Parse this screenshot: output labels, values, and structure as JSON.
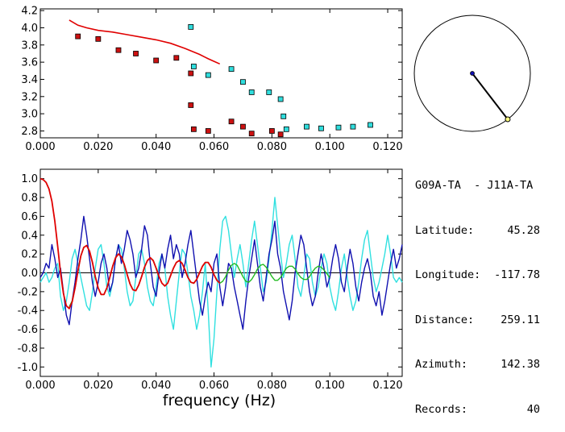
{
  "info": {
    "pair": "G09A-TA  - J11A-TA",
    "rows": [
      {
        "label": "Latitude:",
        "value": "45.28"
      },
      {
        "label": "Longitude:",
        "value": "-117.78"
      },
      {
        "label": "Distance:",
        "value": "259.11"
      },
      {
        "label": "Azimuth:",
        "value": "142.38"
      },
      {
        "label": "Records:",
        "value": "40"
      }
    ]
  },
  "colors": {
    "red": "#e00000",
    "blue": "#1010b0",
    "cyan": "#30e0e0",
    "green": "#22bb22",
    "red_marker": "#cc1111",
    "cyan_marker": "#30dddd"
  },
  "chart_data": [
    {
      "type": "scatter",
      "xlim": [
        0.0,
        0.125
      ],
      "ylim": [
        2.72,
        4.22
      ],
      "xticks": [
        "0.000",
        "0.020",
        "0.040",
        "0.060",
        "0.080",
        "0.100",
        "0.120"
      ],
      "yticks": [
        "2.8",
        "3.0",
        "3.2",
        "3.4",
        "3.6",
        "3.8",
        "4.0",
        "4.2"
      ],
      "curve": {
        "x": [
          0.01,
          0.013,
          0.016,
          0.02,
          0.025,
          0.03,
          0.035,
          0.04,
          0.045,
          0.05,
          0.055,
          0.058,
          0.06,
          0.062
        ],
        "y": [
          4.09,
          4.03,
          4.0,
          3.97,
          3.95,
          3.92,
          3.89,
          3.86,
          3.82,
          3.76,
          3.69,
          3.64,
          3.61,
          3.58
        ]
      },
      "red_points": {
        "x": [
          0.013,
          0.02,
          0.027,
          0.033,
          0.04,
          0.047,
          0.052,
          0.052,
          0.053,
          0.058,
          0.066,
          0.07,
          0.073,
          0.08,
          0.083
        ],
        "y": [
          3.9,
          3.87,
          3.74,
          3.7,
          3.62,
          3.65,
          3.47,
          3.1,
          2.82,
          2.8,
          2.91,
          2.85,
          2.77,
          2.8,
          2.76
        ]
      },
      "cyan_points": {
        "x": [
          0.052,
          0.053,
          0.058,
          0.066,
          0.07,
          0.073,
          0.079,
          0.083,
          0.084,
          0.085,
          0.092,
          0.097,
          0.103,
          0.108,
          0.114
        ],
        "y": [
          4.01,
          3.55,
          3.45,
          3.52,
          3.37,
          3.25,
          3.25,
          3.17,
          2.97,
          2.82,
          2.85,
          2.83,
          2.84,
          2.85,
          2.87
        ]
      }
    },
    {
      "type": "line",
      "xlim": [
        0.0,
        0.125
      ],
      "ylim": [
        -1.1,
        1.1
      ],
      "xlabel": "frequency (Hz)",
      "xticks": [
        "0.000",
        "0.020",
        "0.040",
        "0.060",
        "0.080",
        "0.100",
        "0.120"
      ],
      "yticks": [
        "-1.0",
        "-0.8",
        "-0.6",
        "-0.4",
        "-0.2",
        "0.0",
        "0.2",
        "0.4",
        "0.6",
        "0.8",
        "1.0"
      ],
      "series": [
        {
          "x": [
            0.0,
            0.001,
            0.002,
            0.003,
            0.004,
            0.005,
            0.006,
            0.007,
            0.008,
            0.009,
            0.01,
            0.011,
            0.012,
            0.013,
            0.014,
            0.015,
            0.016,
            0.017,
            0.018,
            0.019,
            0.02,
            0.021,
            0.022,
            0.023,
            0.024,
            0.025,
            0.026,
            0.027,
            0.028,
            0.029,
            0.03,
            0.031,
            0.032,
            0.033,
            0.034,
            0.035,
            0.036,
            0.037,
            0.038,
            0.039,
            0.04,
            0.041,
            0.042,
            0.043,
            0.044,
            0.045,
            0.046,
            0.047,
            0.048,
            0.049,
            0.05,
            0.051,
            0.052,
            0.053,
            0.054,
            0.055,
            0.056,
            0.057,
            0.058,
            0.059,
            0.06,
            0.061,
            0.062
          ],
          "y": [
            1.0,
            0.99,
            0.96,
            0.89,
            0.76,
            0.55,
            0.28,
            0.0,
            -0.22,
            -0.35,
            -0.38,
            -0.31,
            -0.16,
            0.02,
            0.18,
            0.27,
            0.29,
            0.23,
            0.11,
            -0.04,
            -0.16,
            -0.23,
            -0.23,
            -0.16,
            -0.05,
            0.07,
            0.16,
            0.2,
            0.17,
            0.09,
            -0.02,
            -0.12,
            -0.18,
            -0.19,
            -0.13,
            -0.04,
            0.06,
            0.13,
            0.16,
            0.13,
            0.05,
            -0.04,
            -0.11,
            -0.14,
            -0.11,
            -0.03,
            0.05,
            0.11,
            0.13,
            0.1,
            0.03,
            -0.05,
            -0.1,
            -0.11,
            -0.07,
            0.0,
            0.07,
            0.11,
            0.11,
            0.06,
            -0.02,
            -0.08,
            -0.11
          ]
        },
        {
          "x": [
            0.0,
            0.001,
            0.002,
            0.003,
            0.004,
            0.005,
            0.006,
            0.007,
            0.008,
            0.009,
            0.01,
            0.011,
            0.012,
            0.013,
            0.014,
            0.015,
            0.016,
            0.017,
            0.018,
            0.019,
            0.02,
            0.021,
            0.022,
            0.023,
            0.024,
            0.025,
            0.026,
            0.027,
            0.028,
            0.029,
            0.03,
            0.031,
            0.032,
            0.033,
            0.034,
            0.035,
            0.036,
            0.037,
            0.038,
            0.039,
            0.04,
            0.041,
            0.042,
            0.043,
            0.044,
            0.045,
            0.046,
            0.047,
            0.048,
            0.049,
            0.05,
            0.051,
            0.052,
            0.053,
            0.054,
            0.055,
            0.056,
            0.057,
            0.058,
            0.059,
            0.06,
            0.061,
            0.062,
            0.063,
            0.064,
            0.065,
            0.066,
            0.067,
            0.068,
            0.069,
            0.07,
            0.071,
            0.072,
            0.073,
            0.074,
            0.075,
            0.076,
            0.077,
            0.078,
            0.079,
            0.08,
            0.081,
            0.082,
            0.083,
            0.084,
            0.085,
            0.086,
            0.087,
            0.088,
            0.089,
            0.09,
            0.091,
            0.092,
            0.093,
            0.094,
            0.095,
            0.096,
            0.097,
            0.098,
            0.099,
            0.1,
            0.101,
            0.102,
            0.103,
            0.104,
            0.105,
            0.106,
            0.107,
            0.108,
            0.109,
            0.11,
            0.111,
            0.112,
            0.113,
            0.114,
            0.115,
            0.116,
            0.117,
            0.118,
            0.119,
            0.12,
            0.121,
            0.122,
            0.123,
            0.124,
            0.125
          ],
          "y": [
            -0.05,
            0.0,
            0.1,
            0.05,
            0.3,
            0.15,
            -0.05,
            0.05,
            -0.2,
            -0.45,
            -0.55,
            -0.3,
            -0.1,
            0.15,
            0.35,
            0.6,
            0.4,
            0.15,
            -0.1,
            -0.25,
            -0.1,
            0.1,
            0.2,
            0.05,
            -0.2,
            -0.1,
            0.15,
            0.3,
            0.1,
            0.25,
            0.45,
            0.35,
            0.2,
            -0.05,
            0.05,
            0.25,
            0.5,
            0.4,
            0.1,
            -0.15,
            -0.25,
            0.0,
            0.2,
            0.05,
            0.25,
            0.4,
            0.15,
            0.3,
            0.2,
            -0.05,
            0.1,
            0.3,
            0.45,
            0.2,
            -0.05,
            -0.3,
            -0.45,
            -0.25,
            -0.1,
            -0.2,
            0.1,
            0.2,
            -0.15,
            -0.35,
            -0.15,
            0.1,
            0.05,
            -0.15,
            -0.3,
            -0.45,
            -0.6,
            -0.3,
            -0.05,
            0.15,
            0.35,
            0.1,
            -0.15,
            -0.3,
            -0.05,
            0.2,
            0.35,
            0.55,
            0.2,
            0.05,
            -0.2,
            -0.35,
            -0.5,
            -0.3,
            0.0,
            0.2,
            0.4,
            0.3,
            0.05,
            -0.2,
            -0.35,
            -0.25,
            0.0,
            0.2,
            0.05,
            -0.15,
            -0.05,
            0.15,
            0.3,
            0.15,
            -0.1,
            -0.2,
            0.05,
            0.25,
            0.1,
            -0.15,
            -0.3,
            -0.1,
            0.05,
            0.15,
            0.0,
            -0.25,
            -0.35,
            -0.2,
            -0.45,
            -0.3,
            -0.1,
            0.1,
            0.25,
            0.05,
            0.15,
            0.3
          ]
        },
        {
          "x": [
            0.0,
            0.001,
            0.002,
            0.003,
            0.004,
            0.005,
            0.006,
            0.007,
            0.008,
            0.009,
            0.01,
            0.011,
            0.012,
            0.013,
            0.014,
            0.015,
            0.016,
            0.017,
            0.018,
            0.019,
            0.02,
            0.021,
            0.022,
            0.023,
            0.024,
            0.025,
            0.026,
            0.027,
            0.028,
            0.029,
            0.03,
            0.031,
            0.032,
            0.033,
            0.034,
            0.035,
            0.036,
            0.037,
            0.038,
            0.039,
            0.04,
            0.041,
            0.042,
            0.043,
            0.044,
            0.045,
            0.046,
            0.047,
            0.048,
            0.049,
            0.05,
            0.051,
            0.052,
            0.053,
            0.054,
            0.055,
            0.056,
            0.057,
            0.058,
            0.059,
            0.06,
            0.061,
            0.062,
            0.063,
            0.064,
            0.065,
            0.066,
            0.067,
            0.068,
            0.069,
            0.07,
            0.071,
            0.072,
            0.073,
            0.074,
            0.075,
            0.076,
            0.077,
            0.078,
            0.079,
            0.08,
            0.081,
            0.082,
            0.083,
            0.084,
            0.085,
            0.086,
            0.087,
            0.088,
            0.089,
            0.09,
            0.091,
            0.092,
            0.093,
            0.094,
            0.095,
            0.096,
            0.097,
            0.098,
            0.099,
            0.1,
            0.101,
            0.102,
            0.103,
            0.104,
            0.105,
            0.106,
            0.107,
            0.108,
            0.109,
            0.11,
            0.111,
            0.112,
            0.113,
            0.114,
            0.115,
            0.116,
            0.117,
            0.118,
            0.119,
            0.12,
            0.121,
            0.122,
            0.123,
            0.124,
            0.125
          ],
          "y": [
            -0.1,
            -0.05,
            0.0,
            -0.1,
            -0.05,
            0.05,
            0.1,
            -0.25,
            -0.4,
            -0.3,
            -0.1,
            0.15,
            0.25,
            0.1,
            -0.05,
            -0.2,
            -0.35,
            -0.4,
            -0.2,
            0.05,
            0.25,
            0.3,
            0.1,
            -0.15,
            -0.25,
            -0.1,
            0.15,
            0.3,
            0.25,
            0.05,
            -0.2,
            -0.35,
            -0.3,
            -0.05,
            0.2,
            0.25,
            0.1,
            -0.15,
            -0.3,
            -0.35,
            -0.15,
            0.1,
            0.2,
            0.05,
            -0.25,
            -0.45,
            -0.6,
            -0.3,
            0.0,
            0.25,
            0.2,
            0.0,
            -0.25,
            -0.4,
            -0.6,
            -0.45,
            -0.2,
            0.1,
            -0.4,
            -1.0,
            -0.7,
            -0.2,
            0.25,
            0.55,
            0.6,
            0.45,
            0.2,
            -0.05,
            0.15,
            0.3,
            0.1,
            -0.15,
            0.1,
            0.35,
            0.55,
            0.3,
            0.05,
            -0.2,
            -0.1,
            0.15,
            0.45,
            0.8,
            0.5,
            0.2,
            -0.05,
            0.1,
            0.3,
            0.4,
            0.15,
            -0.15,
            -0.25,
            -0.05,
            0.2,
            0.15,
            -0.1,
            -0.25,
            -0.15,
            0.05,
            0.2,
            0.1,
            -0.15,
            -0.3,
            -0.4,
            -0.2,
            0.05,
            0.2,
            -0.05,
            -0.25,
            -0.4,
            -0.3,
            -0.1,
            0.15,
            0.35,
            0.45,
            0.2,
            -0.05,
            -0.2,
            -0.1,
            0.05,
            0.2,
            0.4,
            0.2,
            -0.05,
            -0.1,
            -0.05,
            -0.1
          ]
        },
        {
          "x": [
            0.01,
            0.011,
            0.012,
            0.013,
            0.014,
            0.015,
            0.016,
            0.017,
            0.018,
            0.019,
            0.02,
            0.021,
            0.022,
            0.023,
            0.024,
            0.025,
            0.026,
            0.027,
            0.028,
            0.029,
            0.03,
            0.031,
            0.032,
            0.033,
            0.034,
            0.035,
            0.036,
            0.037,
            0.038,
            0.039,
            0.04,
            0.041,
            0.042,
            0.043,
            0.044,
            0.045,
            0.046,
            0.047,
            0.048,
            0.049,
            0.05,
            0.051,
            0.052,
            0.053,
            0.054,
            0.055,
            0.056,
            0.057,
            0.058,
            0.059,
            0.06,
            0.061,
            0.062,
            0.063,
            0.064,
            0.065,
            0.066,
            0.067,
            0.068,
            0.069,
            0.07,
            0.071,
            0.072,
            0.073,
            0.074,
            0.075,
            0.076,
            0.077,
            0.078,
            0.079,
            0.08,
            0.081,
            0.082,
            0.083,
            0.084,
            0.085,
            0.086,
            0.087,
            0.088,
            0.089,
            0.09,
            0.091,
            0.092,
            0.093,
            0.094,
            0.095,
            0.096,
            0.097,
            0.098,
            0.099,
            0.1
          ],
          "y": [
            -0.36,
            -0.3,
            -0.16,
            0.02,
            0.18,
            0.27,
            0.29,
            0.23,
            0.11,
            -0.04,
            -0.16,
            -0.23,
            -0.23,
            -0.16,
            -0.05,
            0.07,
            0.16,
            0.2,
            0.17,
            0.09,
            -0.02,
            -0.12,
            -0.18,
            -0.19,
            -0.13,
            -0.04,
            0.06,
            0.13,
            0.16,
            0.13,
            0.05,
            -0.04,
            -0.11,
            -0.14,
            -0.11,
            -0.03,
            0.05,
            0.11,
            0.13,
            0.1,
            0.03,
            -0.05,
            -0.1,
            -0.11,
            -0.07,
            0.0,
            0.07,
            0.11,
            0.11,
            0.06,
            -0.02,
            -0.08,
            -0.11,
            -0.09,
            -0.04,
            0.03,
            0.08,
            0.1,
            0.08,
            0.02,
            -0.04,
            -0.09,
            -0.1,
            -0.07,
            -0.02,
            0.04,
            0.08,
            0.09,
            0.06,
            0.01,
            -0.04,
            -0.08,
            -0.08,
            -0.05,
            0.0,
            0.05,
            0.07,
            0.07,
            0.04,
            -0.01,
            -0.05,
            -0.07,
            -0.07,
            -0.04,
            0.01,
            0.05,
            0.07,
            0.06,
            0.03,
            -0.01,
            -0.05
          ]
        }
      ]
    },
    {
      "type": "scatter",
      "azimuth_deg": 142.38
    }
  ]
}
